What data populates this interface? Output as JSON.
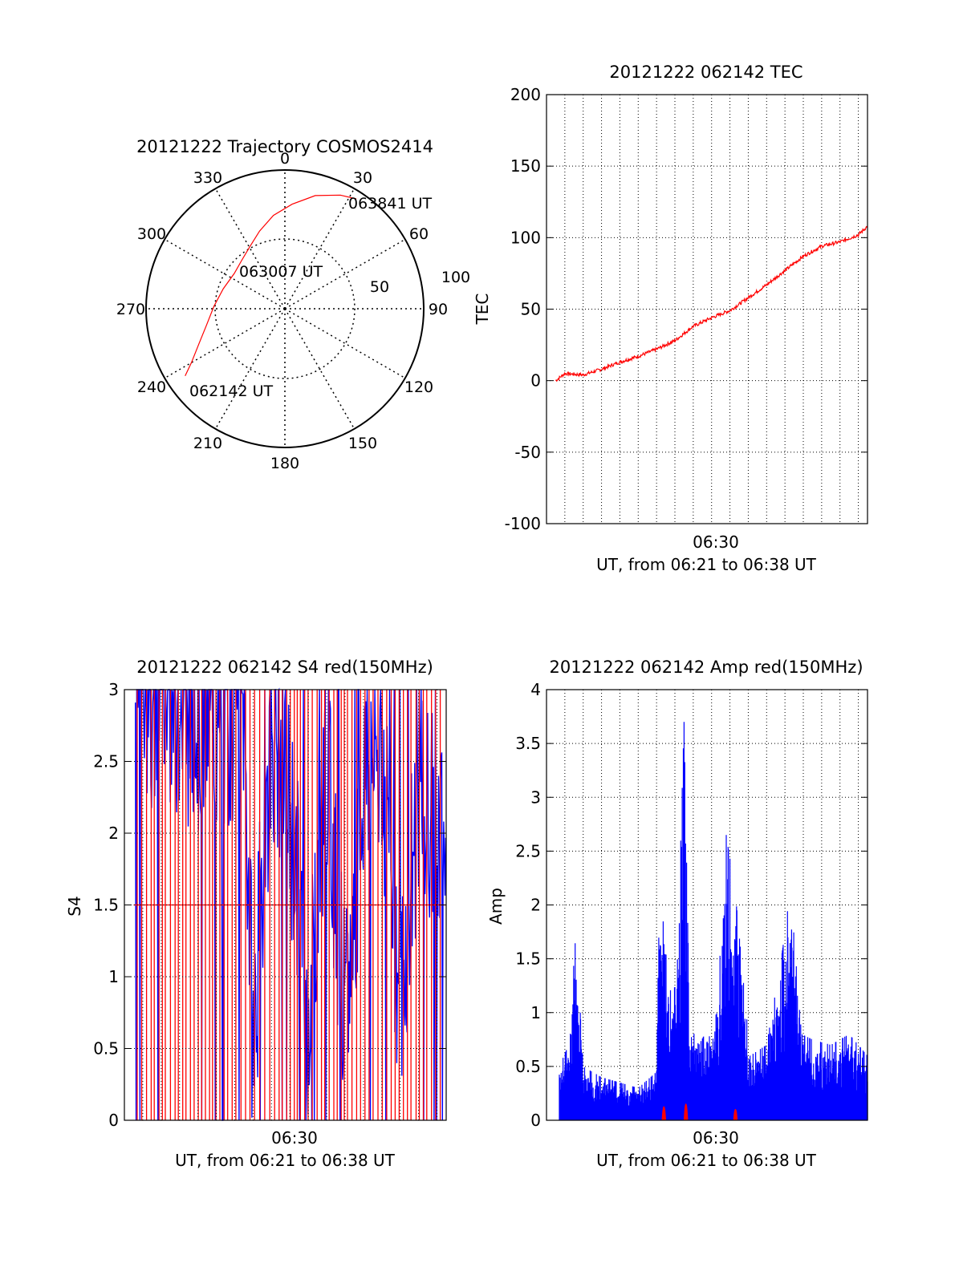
{
  "chart_data": [
    {
      "type": "polar",
      "title": "20121222 Trajectory COSMOS2414",
      "azimuth_labels": [
        "0",
        "30",
        "60",
        "90",
        "120",
        "150",
        "180",
        "210",
        "240",
        "270",
        "300",
        "330"
      ],
      "elevation_ring_labels": [
        "50",
        "100"
      ],
      "trajectory": {
        "color": "#ff0000",
        "points": [
          {
            "azimuth": 236,
            "zenith": 78
          },
          {
            "azimuth": 240,
            "zenith": 70
          },
          {
            "azimuth": 248,
            "zenith": 60
          },
          {
            "azimuth": 258,
            "zenith": 52
          },
          {
            "azimuth": 272,
            "zenith": 46
          },
          {
            "azimuth": 288,
            "zenith": 42
          },
          {
            "azimuth": 305,
            "zenith": 40
          },
          {
            "azimuth": 318,
            "zenith": 42
          },
          {
            "azimuth": 330,
            "zenith": 46
          },
          {
            "azimuth": 342,
            "zenith": 53
          },
          {
            "azimuth": 353,
            "zenith": 61
          },
          {
            "azimuth": 4,
            "zenith": 68
          },
          {
            "azimuth": 15,
            "zenith": 76
          },
          {
            "azimuth": 26,
            "zenith": 82
          },
          {
            "azimuth": 33,
            "zenith": 85
          }
        ]
      },
      "annotations": [
        "063841 UT",
        "063007 UT",
        "062142 UT"
      ]
    },
    {
      "type": "line",
      "title": "20121222 062142 TEC",
      "ylabel": "TEC",
      "xlabel": "UT, from 06:21 to 06:38 UT",
      "x_tick_label": "06:30",
      "ylim": [
        -100,
        200
      ],
      "y_ticks": [
        "-100",
        "-50",
        "0",
        "50",
        "100",
        "150",
        "200"
      ],
      "x_range_min": [
        0,
        17.5
      ],
      "grid": true,
      "series": [
        {
          "color": "#ff0000",
          "x": [
            0.5,
            1,
            2,
            3,
            4,
            5,
            6,
            7,
            8,
            9,
            10,
            11,
            12,
            13,
            14,
            15,
            16,
            17,
            17.5
          ],
          "y": [
            0,
            5,
            4,
            8,
            13,
            17,
            22,
            28,
            38,
            44,
            49,
            58,
            67,
            77,
            87,
            94,
            97,
            102,
            108
          ]
        }
      ]
    },
    {
      "type": "line",
      "title": "20121222 062142 S4 red(150MHz)",
      "ylabel": "S4",
      "xlabel": "UT, from 06:21 to 06:38 UT",
      "x_tick_label": "06:30",
      "ylim": [
        0,
        3
      ],
      "y_ticks": [
        "0",
        "0.5",
        "1",
        "1.5",
        "2",
        "2.5",
        "3"
      ],
      "x_range_min": [
        0,
        17.5
      ],
      "grid": true,
      "series": [
        {
          "color": "#0000ff",
          "x": [
            0.5,
            6,
            6.5,
            7,
            8,
            9,
            10,
            11,
            12,
            13,
            14,
            15,
            16,
            17,
            17.5
          ],
          "y": [
            3,
            2.7,
            2.9,
            0.5,
            2.8,
            2.2,
            0.8,
            2.6,
            0.6,
            2.4,
            2.6,
            0.8,
            2.3,
            2.0,
            1.8
          ]
        },
        {
          "color": "#ff0000",
          "x": [
            0.5,
            17.5
          ],
          "y": [
            1.5,
            1.5
          ]
        }
      ]
    },
    {
      "type": "area",
      "title": "20121222 062142 Amp red(150MHz)",
      "ylabel": "Amp",
      "xlabel": "UT, from 06:21 to 06:38 UT",
      "x_tick_label": "06:30",
      "ylim": [
        0,
        4
      ],
      "y_ticks": [
        "0",
        "0.5",
        "1",
        "1.5",
        "2",
        "2.5",
        "3",
        "3.5",
        "4"
      ],
      "x_range_min": [
        0,
        17.5
      ],
      "grid": true,
      "series": [
        {
          "color": "#0000ff",
          "x": [
            0.7,
            1.2,
            1.6,
            2.0,
            3,
            4,
            5,
            6,
            6.1,
            6.4,
            6.7,
            7.1,
            7.5,
            7.8,
            8.3,
            9.3,
            9.8,
            10.3,
            11.1,
            12.0,
            12.8,
            13.3,
            13.9,
            14.5,
            15.5,
            16.5,
            17.5
          ],
          "y": [
            0.5,
            0.7,
            1.75,
            0.5,
            0.4,
            0.35,
            0.3,
            0.45,
            1.9,
            2.25,
            1.2,
            1.25,
            3.7,
            0.9,
            0.7,
            1.0,
            2.65,
            2.1,
            0.6,
            0.7,
            1.5,
            2.15,
            0.8,
            0.75,
            0.7,
            0.8,
            0.6
          ]
        },
        {
          "color": "#ff0000",
          "x": [
            6.4,
            7.6,
            10.3
          ],
          "y": [
            0.25,
            0.3,
            0.2
          ]
        }
      ]
    }
  ]
}
